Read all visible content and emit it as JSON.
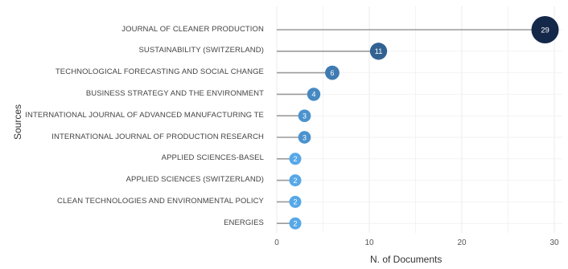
{
  "chart_data": {
    "type": "lollipop",
    "xlabel": "N. of Documents",
    "ylabel": "Sources",
    "xlim": [
      0,
      30
    ],
    "x_ticks": [
      "0",
      "10",
      "20",
      "30"
    ],
    "grid": true,
    "categories": [
      "JOURNAL OF CLEANER PRODUCTION",
      "SUSTAINABILITY (SWITZERLAND)",
      "TECHNOLOGICAL FORECASTING AND SOCIAL CHANGE",
      "BUSINESS STRATEGY AND THE ENVIRONMENT",
      "INTERNATIONAL JOURNAL OF ADVANCED MANUFACTURING TE",
      "INTERNATIONAL JOURNAL OF PRODUCTION RESEARCH",
      "APPLIED SCIENCES-BASEL",
      "APPLIED SCIENCES (SWITZERLAND)",
      "CLEAN TECHNOLOGIES AND ENVIRONMENTAL POLICY",
      "ENERGIES"
    ],
    "values": [
      29,
      11,
      6,
      4,
      3,
      3,
      2,
      2,
      2,
      2
    ],
    "value_labels": [
      "29",
      "11",
      "6",
      "4",
      "3",
      "3",
      "2",
      "2",
      "2",
      "2"
    ],
    "colors": {
      "low": "#56a8e8",
      "high": "#14284a",
      "stem": "#9a9a9a",
      "grid": "#ebebeb"
    }
  }
}
